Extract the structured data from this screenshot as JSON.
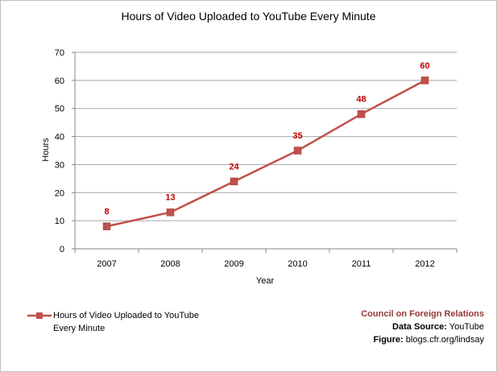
{
  "chart_data": {
    "type": "line",
    "title": "Hours of Video Uploaded to YouTube Every Minute",
    "xlabel": "Year",
    "ylabel": "Hours",
    "categories": [
      "2007",
      "2008",
      "2009",
      "2010",
      "2011",
      "2012"
    ],
    "series": [
      {
        "name": "Hours of Video Uploaded to YouTube Every Minute",
        "values": [
          8,
          13,
          24,
          35,
          48,
          60
        ],
        "data_labels": [
          "8",
          "13",
          "24",
          "35",
          "48",
          "60"
        ]
      }
    ],
    "ylim": [
      0,
      70
    ],
    "yticks": [
      "0",
      "10",
      "20",
      "30",
      "40",
      "50",
      "60",
      "70"
    ],
    "grid": "horizontal",
    "legend_position": "bottom-left",
    "colors": {
      "series": "#c0504d",
      "data_label": "#c00000",
      "grid": "#a6a6a6",
      "axis": "#868686"
    }
  },
  "credits": {
    "organization": "Council on Foreign Relations",
    "source_label": "Data Source:",
    "source_value": "YouTube",
    "figure_label": "Figure:",
    "figure_value": "blogs.cfr.org/lindsay"
  },
  "colors": {
    "credit_org": "#953735"
  }
}
